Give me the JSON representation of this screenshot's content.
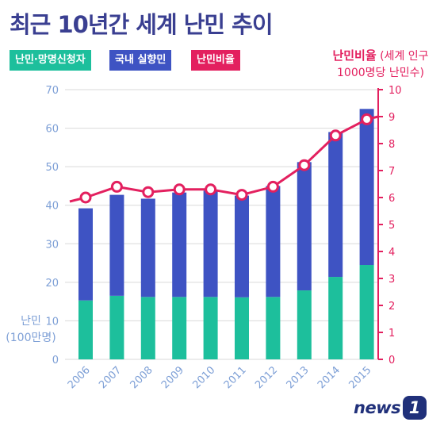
{
  "title": "최근 10년간 세계 난민 추이",
  "legend": [
    {
      "label": "난민·망명신청자",
      "color": "#1dbf9c"
    },
    {
      "label": "국내 실향민",
      "color": "#3e53c3"
    },
    {
      "label": "난민비율",
      "color": "#e3205f"
    }
  ],
  "right_axis_title": {
    "line1": "난민비율",
    "line1_suffix": " (세계 인구",
    "line2": "1000명당 난민수)"
  },
  "left_axis_title": {
    "line1": "난민",
    "line2": "(100만명)"
  },
  "logo": {
    "text": "news",
    "badge": "1"
  },
  "chart_data": {
    "type": "bar",
    "stacked": true,
    "categories": [
      "2006",
      "2007",
      "2008",
      "2009",
      "2010",
      "2011",
      "2012",
      "2013",
      "2014",
      "2015"
    ],
    "series": [
      {
        "name": "난민·망명신청자",
        "values": [
          15.3,
          16.5,
          16.2,
          16.2,
          16.2,
          16.1,
          16.2,
          17.9,
          21.4,
          24.5
        ]
      },
      {
        "name": "국내 실향민",
        "values": [
          23.9,
          26.2,
          25.5,
          27.1,
          27.6,
          26.4,
          28.8,
          33.3,
          37.6,
          40.5
        ]
      }
    ],
    "line_series": {
      "name": "난민비율",
      "axis": "right",
      "values": [
        6.0,
        6.4,
        6.2,
        6.3,
        6.3,
        6.1,
        6.4,
        7.2,
        8.3,
        8.9
      ]
    },
    "left_axis": {
      "ylim": [
        0,
        70
      ],
      "ticks": [
        0,
        10,
        20,
        30,
        40,
        50,
        60,
        70
      ]
    },
    "right_axis": {
      "ylim": [
        0,
        10
      ],
      "ticks": [
        0,
        1,
        2,
        3,
        4,
        5,
        6,
        7,
        8,
        9,
        10
      ]
    },
    "grid": true,
    "colors": {
      "refugees": "#1dbf9c",
      "idp": "#3e53c3",
      "ratio": "#e3205f",
      "axis_text": "#7d9fd6",
      "grid": "#d9d9d9"
    }
  }
}
